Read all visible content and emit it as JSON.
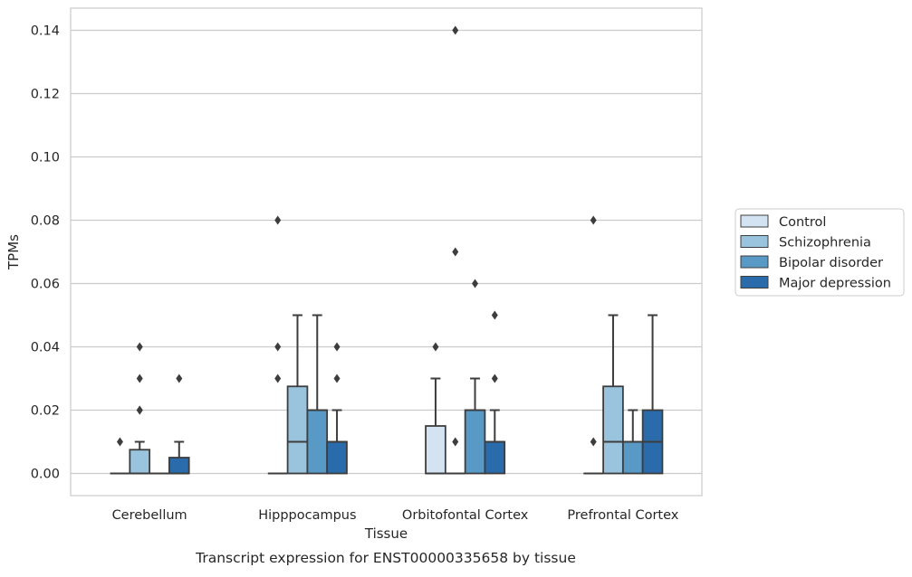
{
  "chart_data": {
    "type": "box",
    "title": "",
    "caption": "Transcript expression for ENST00000335658 by tissue",
    "xlabel": "Tissue",
    "ylabel": "TPMs",
    "ylim": [
      -0.007,
      0.147
    ],
    "yticks": [
      0.0,
      0.02,
      0.04,
      0.06,
      0.08,
      0.1,
      0.12,
      0.14
    ],
    "ytick_labels": [
      "0.00",
      "0.02",
      "0.04",
      "0.06",
      "0.08",
      "0.10",
      "0.12",
      "0.14"
    ],
    "grid": "horizontal",
    "legend_position": "right",
    "categories": [
      "Cerebellum",
      "Hipppocampus",
      "Orbitofontal Cortex",
      "Prefrontal Cortex"
    ],
    "series": [
      {
        "name": "Control",
        "color": "#d4e3f2",
        "boxes": [
          {
            "q1": 0.0,
            "median": 0.0,
            "q3": 0.0,
            "whislo": 0.0,
            "whishi": 0.0,
            "fliers": [
              0.01
            ]
          },
          {
            "q1": 0.0,
            "median": 0.0,
            "q3": 0.0,
            "whislo": 0.0,
            "whishi": 0.0,
            "fliers": [
              0.03,
              0.04,
              0.08
            ]
          },
          {
            "q1": 0.0,
            "median": 0.0,
            "q3": 0.015,
            "whislo": 0.0,
            "whishi": 0.03,
            "fliers": [
              0.04
            ]
          },
          {
            "q1": 0.0,
            "median": 0.0,
            "q3": 0.0,
            "whislo": 0.0,
            "whishi": 0.0,
            "fliers": [
              0.01,
              0.08
            ]
          }
        ]
      },
      {
        "name": "Schizophrenia",
        "color": "#9ac4de",
        "boxes": [
          {
            "q1": 0.0,
            "median": 0.0,
            "q3": 0.0075,
            "whislo": 0.0,
            "whishi": 0.01,
            "fliers": [
              0.02,
              0.02,
              0.03,
              0.04
            ]
          },
          {
            "q1": 0.0,
            "median": 0.01,
            "q3": 0.0275,
            "whislo": 0.0,
            "whishi": 0.05,
            "fliers": []
          },
          {
            "q1": 0.0,
            "median": 0.0,
            "q3": 0.0,
            "whislo": 0.0,
            "whishi": 0.0,
            "fliers": [
              0.01,
              0.07,
              0.14
            ]
          },
          {
            "q1": 0.0,
            "median": 0.01,
            "q3": 0.0275,
            "whislo": 0.0,
            "whishi": 0.05,
            "fliers": []
          }
        ]
      },
      {
        "name": "Bipolar disorder",
        "color": "#5899c6",
        "boxes": [
          {
            "q1": 0.0,
            "median": 0.0,
            "q3": 0.0,
            "whislo": 0.0,
            "whishi": 0.0,
            "fliers": []
          },
          {
            "q1": 0.0,
            "median": 0.02,
            "q3": 0.02,
            "whislo": 0.0,
            "whishi": 0.05,
            "fliers": []
          },
          {
            "q1": 0.0,
            "median": 0.02,
            "q3": 0.02,
            "whislo": 0.0,
            "whishi": 0.03,
            "fliers": [
              0.06
            ]
          },
          {
            "q1": 0.0,
            "median": 0.01,
            "q3": 0.01,
            "whislo": 0.0,
            "whishi": 0.02,
            "fliers": []
          }
        ]
      },
      {
        "name": "Major depression",
        "color": "#2a6bab",
        "boxes": [
          {
            "q1": 0.0,
            "median": 0.0,
            "q3": 0.005,
            "whislo": 0.0,
            "whishi": 0.01,
            "fliers": [
              0.03
            ]
          },
          {
            "q1": 0.0,
            "median": 0.01,
            "q3": 0.01,
            "whislo": 0.0,
            "whishi": 0.02,
            "fliers": [
              0.03,
              0.04
            ]
          },
          {
            "q1": 0.0,
            "median": 0.01,
            "q3": 0.01,
            "whislo": 0.0,
            "whishi": 0.02,
            "fliers": [
              0.03,
              0.05
            ]
          },
          {
            "q1": 0.0,
            "median": 0.01,
            "q3": 0.02,
            "whislo": 0.0,
            "whishi": 0.05,
            "fliers": []
          }
        ]
      }
    ]
  }
}
